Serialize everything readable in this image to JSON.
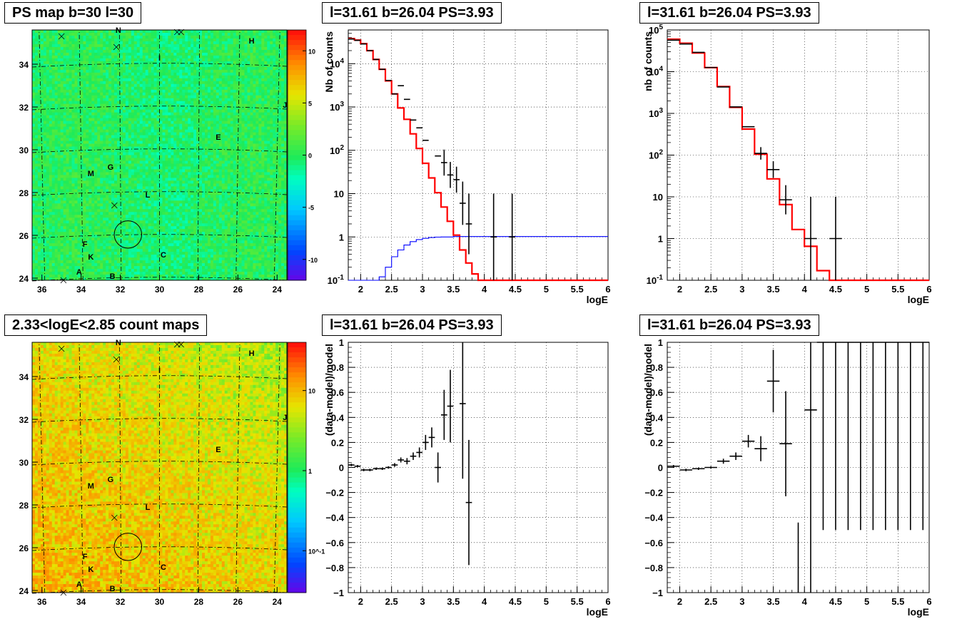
{
  "panels": {
    "ps_map": {
      "title": "PS map b=30 l=30",
      "x_ticks": [
        "36",
        "34",
        "32",
        "30",
        "28",
        "26",
        "24"
      ],
      "y_ticks": [
        "24",
        "26",
        "28",
        "30",
        "32",
        "34"
      ],
      "colorbar_ticks": [
        "10",
        "5",
        "0",
        "-5",
        "-10"
      ],
      "source_labels": [
        "N",
        "H",
        "I",
        "J",
        "E",
        "G",
        "M",
        "L",
        "F",
        "K",
        "C",
        "A",
        "B"
      ]
    },
    "count_map": {
      "title": "2.33<logE<2.85 count maps",
      "x_ticks": [
        "36",
        "34",
        "32",
        "30",
        "28",
        "26",
        "24"
      ],
      "y_ticks": [
        "24",
        "26",
        "28",
        "30",
        "32",
        "34"
      ],
      "colorbar_ticks": [
        "10",
        "1",
        "10^-1"
      ],
      "source_labels": [
        "N",
        "H",
        "I",
        "J",
        "E",
        "G",
        "M",
        "L",
        "F",
        "K",
        "C",
        "A",
        "B"
      ]
    },
    "spectrum_fine": {
      "title": "l=31.61 b=26.04 PS=3.93"
    },
    "spectrum_coarse": {
      "title": "l=31.61 b=26.04 PS=3.93"
    },
    "residual_fine": {
      "title": "l=31.61 b=26.04 PS=3.93"
    },
    "residual_coarse": {
      "title": "l=31.61 b=26.04 PS=3.93"
    }
  },
  "chart_data": [
    {
      "type": "heatmap",
      "id": "ps_map",
      "title": "PS map b=30 l=30",
      "xlim": [
        36.5,
        23.5
      ],
      "ylim": [
        23.9,
        35.6
      ],
      "x_ticks": [
        36,
        34,
        32,
        30,
        28,
        26,
        24
      ],
      "y_ticks": [
        24,
        26,
        28,
        30,
        32,
        34
      ],
      "color_scale": "linear",
      "color_range": [
        -12,
        12
      ],
      "colorbar_ticks": [
        10,
        5,
        0,
        -5,
        -10
      ],
      "background_value": 0,
      "sources": [
        {
          "label": "N",
          "l": 32.1,
          "b": 35.6
        },
        {
          "label": "H",
          "l": 25.3,
          "b": 35.1
        },
        {
          "label": "I",
          "l": 30.0,
          "b": 34.3
        },
        {
          "label": "J",
          "l": 23.6,
          "b": 32.1
        },
        {
          "label": "E",
          "l": 27.0,
          "b": 30.6
        },
        {
          "label": "G",
          "l": 32.5,
          "b": 29.2
        },
        {
          "label": "M",
          "l": 33.5,
          "b": 28.9
        },
        {
          "label": "L",
          "l": 30.6,
          "b": 27.9
        },
        {
          "label": "F",
          "l": 33.8,
          "b": 25.6
        },
        {
          "label": "K",
          "l": 33.5,
          "b": 25.0
        },
        {
          "label": "C",
          "l": 29.8,
          "b": 25.1
        },
        {
          "label": "A",
          "l": 34.1,
          "b": 24.3
        },
        {
          "label": "B",
          "l": 32.4,
          "b": 24.1
        }
      ],
      "circle": {
        "l": 31.61,
        "b": 26.04,
        "radius_deg": 0.7
      }
    },
    {
      "type": "line",
      "id": "spectrum_fine",
      "title": "l=31.61 b=26.04 PS=3.93",
      "xlabel": "logE",
      "ylabel": "Nb of counts",
      "xlim": [
        1.8,
        6
      ],
      "ylim": [
        0.1,
        60000
      ],
      "yscale": "log",
      "grid": true,
      "series": [
        {
          "kind": "step",
          "color": "#ff0000",
          "x": [
            1.8,
            1.9,
            2.0,
            2.1,
            2.2,
            2.3,
            2.4,
            2.5,
            2.6,
            2.7,
            2.8,
            2.9,
            3.0,
            3.1,
            3.2,
            3.3,
            3.4,
            3.5,
            3.6,
            3.7,
            3.8,
            3.9,
            4.0,
            4.1,
            4.2,
            4.3,
            4.4,
            4.5,
            6.0
          ],
          "values": [
            38000,
            35000,
            29000,
            20000,
            12500,
            7400,
            4000,
            2000,
            950,
            520,
            240,
            110,
            50,
            23,
            10.5,
            4.9,
            2.3,
            1.1,
            0.5,
            0.25,
            0.14,
            0.1,
            0.1,
            0.1,
            0.1,
            0.1,
            0.1,
            0.1,
            0.1
          ]
        },
        {
          "kind": "step",
          "color": "#0000ff",
          "x": [
            1.8,
            2.3,
            2.4,
            2.5,
            2.6,
            2.7,
            2.8,
            2.9,
            3.0,
            3.1,
            3.2,
            3.3,
            3.5,
            6.0
          ],
          "values": [
            0.1,
            0.12,
            0.2,
            0.35,
            0.5,
            0.65,
            0.78,
            0.87,
            0.93,
            0.97,
            0.99,
            1.0,
            1.02,
            1.02
          ]
        },
        {
          "kind": "errorbar",
          "color": "#000000",
          "points": [
            [
              1.85,
              37000,
              0.05,
              0
            ],
            [
              1.95,
              34500,
              0.05,
              0
            ],
            [
              2.05,
              28500,
              0.05,
              0
            ],
            [
              2.15,
              20000,
              0.05,
              0
            ],
            [
              2.25,
              12500,
              0.05,
              0
            ],
            [
              2.35,
              7400,
              0.05,
              0
            ],
            [
              2.45,
              4100,
              0.05,
              0
            ],
            [
              2.55,
              2000,
              0.05,
              0
            ],
            [
              2.65,
              3100,
              0.05,
              0
            ],
            [
              2.75,
              1500,
              0.05,
              0
            ],
            [
              2.85,
              500,
              0.05,
              0
            ],
            [
              2.95,
              330,
              0.05,
              0
            ],
            [
              3.05,
              170,
              0.05,
              0
            ],
            [
              3.25,
              74,
              0.05,
              0
            ],
            [
              3.35,
              52,
              0.05,
              0.3
            ],
            [
              3.45,
              27,
              0.05,
              0.3
            ],
            [
              3.55,
              21,
              0.05,
              0.3
            ],
            [
              3.65,
              6.0,
              0.05,
              0.5
            ],
            [
              3.75,
              2.0,
              0.05,
              0.7
            ],
            [
              4.15,
              1.0,
              0.05,
              1.0
            ],
            [
              4.45,
              1.0,
              0.05,
              1.0
            ]
          ]
        }
      ]
    },
    {
      "type": "line",
      "id": "spectrum_coarse",
      "title": "l=31.61 b=26.04 PS=3.93",
      "xlabel": "logE",
      "ylabel": "nb of counts",
      "xlim": [
        1.8,
        6
      ],
      "ylim": [
        0.1,
        100000
      ],
      "yscale": "log",
      "grid": true,
      "series": [
        {
          "kind": "step",
          "color": "#ff0000",
          "x": [
            1.8,
            2.0,
            2.2,
            2.4,
            2.6,
            2.8,
            3.0,
            3.2,
            3.4,
            3.6,
            3.8,
            4.0,
            4.2,
            4.4,
            6.0
          ],
          "values": [
            60000,
            48000,
            28000,
            12500,
            4400,
            1400,
            420,
            105,
            27,
            6.5,
            1.65,
            0.65,
            0.17,
            0.1,
            0.1
          ]
        },
        {
          "kind": "errorbar",
          "color": "#000000",
          "points": [
            [
              1.9,
              57000,
              0.1,
              0
            ],
            [
              2.1,
              46000,
              0.1,
              0
            ],
            [
              2.3,
              29000,
              0.1,
              0
            ],
            [
              2.5,
              12600,
              0.1,
              0
            ],
            [
              2.7,
              4300,
              0.1,
              0
            ],
            [
              2.9,
              1430,
              0.1,
              0
            ],
            [
              3.1,
              480,
              0.1,
              0
            ],
            [
              3.3,
              110,
              0.1,
              0.15
            ],
            [
              3.5,
              45,
              0.1,
              0.2
            ],
            [
              3.7,
              8.5,
              0.1,
              0.35
            ],
            [
              4.1,
              1.0,
              0.1,
              1.0
            ],
            [
              4.5,
              1.0,
              0.1,
              1.0
            ]
          ]
        }
      ]
    },
    {
      "type": "heatmap",
      "id": "count_map",
      "title": "2.33<logE<2.85 count maps",
      "xlim": [
        36.5,
        23.5
      ],
      "ylim": [
        23.9,
        35.6
      ],
      "x_ticks": [
        36,
        34,
        32,
        30,
        28,
        26,
        24
      ],
      "y_ticks": [
        24,
        26,
        28,
        30,
        32,
        34
      ],
      "color_scale": "log",
      "color_range": [
        0.03,
        40
      ],
      "colorbar_ticks": [
        10,
        1,
        0.1
      ],
      "mean_counts": 5,
      "sources": [
        {
          "label": "N",
          "l": 32.1,
          "b": 35.6
        },
        {
          "label": "H",
          "l": 25.3,
          "b": 35.1
        },
        {
          "label": "I",
          "l": 30.0,
          "b": 34.3
        },
        {
          "label": "J",
          "l": 23.6,
          "b": 32.1
        },
        {
          "label": "E",
          "l": 27.0,
          "b": 30.6
        },
        {
          "label": "G",
          "l": 32.5,
          "b": 29.2
        },
        {
          "label": "M",
          "l": 33.5,
          "b": 28.9
        },
        {
          "label": "L",
          "l": 30.6,
          "b": 27.9
        },
        {
          "label": "F",
          "l": 33.8,
          "b": 25.6
        },
        {
          "label": "K",
          "l": 33.5,
          "b": 25.0
        },
        {
          "label": "C",
          "l": 29.8,
          "b": 25.1
        },
        {
          "label": "A",
          "l": 34.1,
          "b": 24.3
        },
        {
          "label": "B",
          "l": 32.4,
          "b": 24.1
        }
      ],
      "circle": {
        "l": 31.61,
        "b": 26.04,
        "radius_deg": 0.7
      }
    },
    {
      "type": "scatter",
      "id": "residual_fine",
      "title": "l=31.61 b=26.04 PS=3.93",
      "xlabel": "logE",
      "ylabel": "(data-model)/model",
      "xlim": [
        1.8,
        6
      ],
      "ylim": [
        -1,
        1
      ],
      "grid": true,
      "series": [
        {
          "kind": "errorbar",
          "color": "#000000",
          "points": [
            [
              1.85,
              0.02,
              0.05,
              0.01
            ],
            [
              1.95,
              0.01,
              0.05,
              0.01
            ],
            [
              2.05,
              -0.02,
              0.05,
              0.01
            ],
            [
              2.15,
              -0.02,
              0.05,
              0.01
            ],
            [
              2.25,
              -0.01,
              0.05,
              0.01
            ],
            [
              2.35,
              -0.01,
              0.05,
              0.01
            ],
            [
              2.45,
              0.0,
              0.05,
              0.01
            ],
            [
              2.55,
              0.02,
              0.05,
              0.015
            ],
            [
              2.65,
              0.06,
              0.05,
              0.02
            ],
            [
              2.75,
              0.05,
              0.05,
              0.025
            ],
            [
              2.85,
              0.09,
              0.05,
              0.03
            ],
            [
              2.95,
              0.12,
              0.05,
              0.04
            ],
            [
              3.05,
              0.2,
              0.05,
              0.06
            ],
            [
              3.15,
              0.24,
              0.05,
              0.08
            ],
            [
              3.25,
              0.0,
              0.05,
              0.12
            ],
            [
              3.35,
              0.42,
              0.05,
              0.2
            ],
            [
              3.45,
              0.49,
              0.05,
              0.29
            ],
            [
              3.65,
              0.51,
              0.05,
              0.6
            ],
            [
              3.75,
              -0.28,
              0.05,
              0.5
            ]
          ]
        }
      ]
    },
    {
      "type": "scatter",
      "id": "residual_coarse",
      "title": "l=31.61 b=26.04 PS=3.93",
      "xlabel": "logE",
      "ylabel": "(data-model)/model",
      "xlim": [
        1.8,
        6
      ],
      "ylim": [
        -1,
        1
      ],
      "grid": true,
      "series": [
        {
          "kind": "errorbar",
          "color": "#000000",
          "points": [
            [
              1.9,
              0.01,
              0.1,
              0.01
            ],
            [
              2.1,
              -0.02,
              0.1,
              0.01
            ],
            [
              2.3,
              -0.01,
              0.1,
              0.01
            ],
            [
              2.5,
              0.0,
              0.1,
              0.01
            ],
            [
              2.7,
              0.05,
              0.1,
              0.02
            ],
            [
              2.9,
              0.09,
              0.1,
              0.03
            ],
            [
              3.1,
              0.21,
              0.1,
              0.05
            ],
            [
              3.3,
              0.15,
              0.1,
              0.1
            ],
            [
              3.5,
              0.69,
              0.1,
              0.25
            ],
            [
              3.7,
              0.19,
              0.1,
              0.42
            ],
            [
              4.1,
              0.46,
              0.1,
              1.8
            ],
            [
              4.3,
              1.5,
              0.1,
              2.0
            ],
            [
              4.5,
              1.5,
              0.1,
              2.0
            ],
            [
              4.7,
              1.5,
              0.1,
              2.0
            ],
            [
              4.9,
              1.5,
              0.1,
              2.0
            ],
            [
              5.1,
              1.5,
              0.1,
              2.0
            ],
            [
              5.3,
              1.5,
              0.1,
              2.0
            ],
            [
              5.5,
              1.5,
              0.1,
              2.0
            ],
            [
              5.7,
              1.5,
              0.1,
              2.0
            ],
            [
              5.9,
              1.5,
              0.1,
              2.0
            ]
          ],
          "bare_lines": [
            [
              3.9,
              -1.0,
              -0.44
            ]
          ]
        }
      ]
    }
  ]
}
